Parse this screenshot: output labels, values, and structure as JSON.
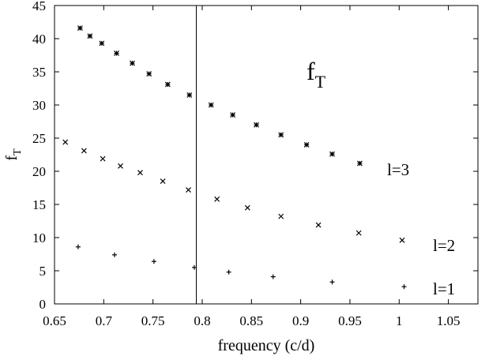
{
  "chart_data": {
    "type": "scatter",
    "xlabel": "frequency (c/d)",
    "ylabel": {
      "main": "f",
      "sub": "T"
    },
    "xlim": [
      0.65,
      1.08
    ],
    "ylim": [
      0,
      45
    ],
    "xticks": [
      0.65,
      0.7,
      0.75,
      0.8,
      0.85,
      0.9,
      0.95,
      1,
      1.05
    ],
    "xtick_labels": [
      "0.65",
      "0.7",
      "0.75",
      "0.8",
      "0.85",
      "0.9",
      "0.95",
      "1",
      "1.05"
    ],
    "yticks": [
      0,
      5,
      10,
      15,
      20,
      25,
      30,
      35,
      40,
      45
    ],
    "ytick_labels": [
      "0",
      "5",
      "10",
      "15",
      "20",
      "25",
      "30",
      "35",
      "40",
      "45"
    ],
    "grid": false,
    "vertical_line_x": 0.794,
    "annotation": {
      "main": "f",
      "sub": "T"
    },
    "series": [
      {
        "name": "l=3",
        "marker": "star",
        "x": [
          0.676,
          0.686,
          0.698,
          0.713,
          0.729,
          0.746,
          0.765,
          0.787,
          0.809,
          0.831,
          0.855,
          0.88,
          0.906,
          0.932,
          0.96
        ],
        "y": [
          41.6,
          40.4,
          39.3,
          37.8,
          36.3,
          34.7,
          33.1,
          31.5,
          30.0,
          28.5,
          27.0,
          25.5,
          24.0,
          22.6,
          21.2
        ]
      },
      {
        "name": "l=2",
        "marker": "x",
        "x": [
          0.661,
          0.68,
          0.699,
          0.717,
          0.737,
          0.76,
          0.786,
          0.815,
          0.846,
          0.88,
          0.918,
          0.959,
          1.003
        ],
        "y": [
          24.4,
          23.1,
          21.9,
          20.8,
          19.8,
          18.5,
          17.2,
          15.8,
          14.5,
          13.2,
          11.9,
          10.7,
          9.6
        ]
      },
      {
        "name": "l=1",
        "marker": "plus",
        "x": [
          0.674,
          0.711,
          0.751,
          0.792,
          0.827,
          0.872,
          0.932,
          1.005
        ],
        "y": [
          8.6,
          7.4,
          6.4,
          5.5,
          4.8,
          4.1,
          3.3,
          2.6
        ]
      }
    ]
  }
}
